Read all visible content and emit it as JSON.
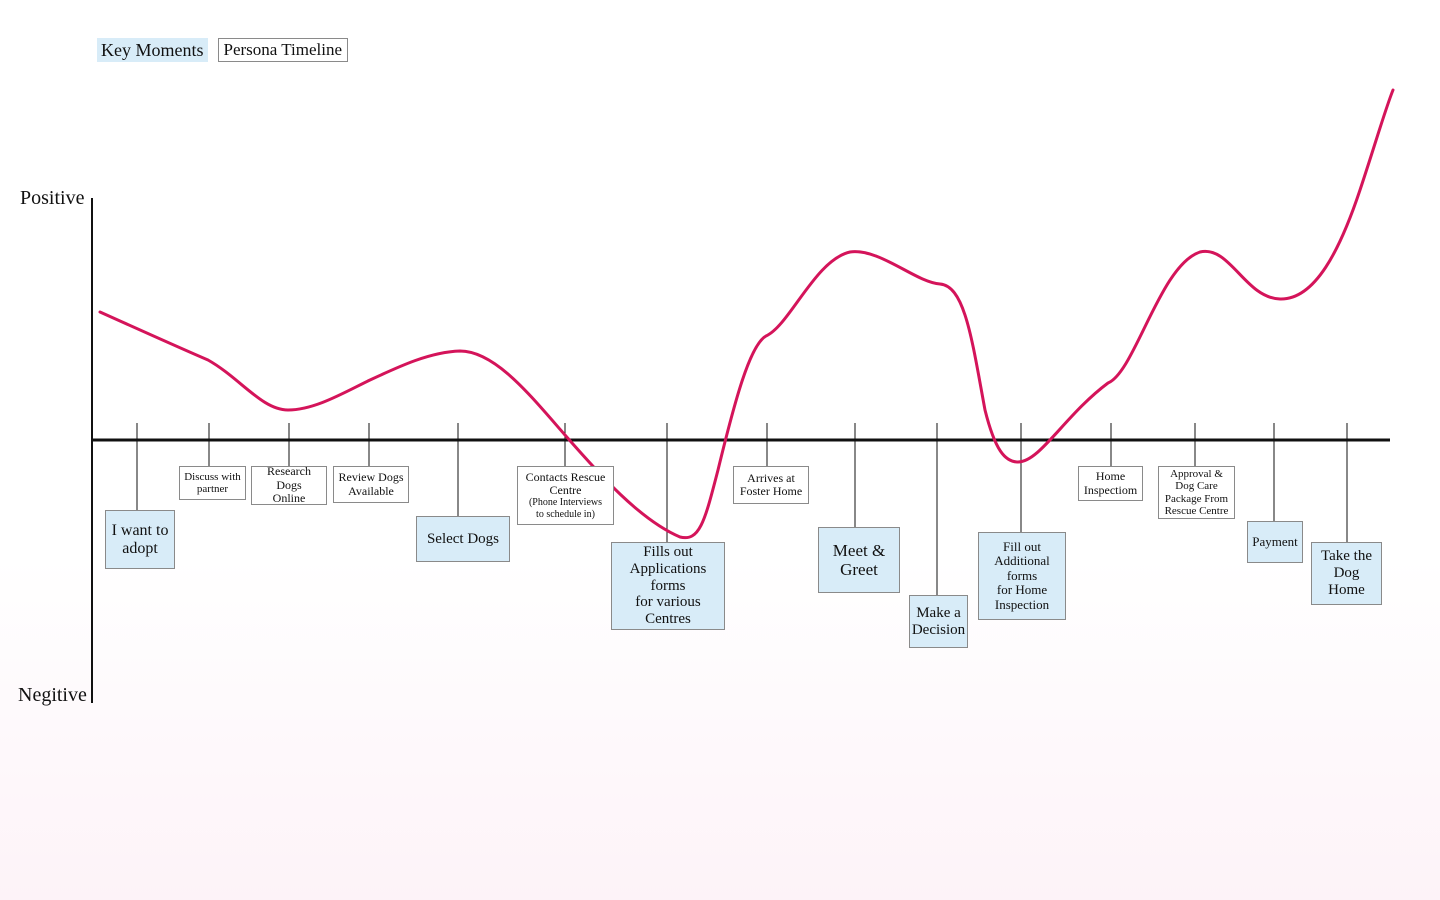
{
  "legend": {
    "key_label": "Key Moments",
    "timeline_label": "Persona Timeline"
  },
  "axis": {
    "positive_label": "Positive",
    "negative_label": "Negitive"
  },
  "colors": {
    "curve": "#d4145a",
    "key_fill": "#d8ecf8",
    "box_border": "#8a8a8a"
  },
  "moments": [
    {
      "id": "want-to-adopt",
      "label": "I want to\nadopt",
      "key": true
    },
    {
      "id": "discuss-partner",
      "label": "Discuss with\npartner",
      "key": false
    },
    {
      "id": "research-dogs",
      "label": "Research Dogs\nOnline",
      "key": false
    },
    {
      "id": "review-dogs",
      "label": "Review Dogs\nAvailable",
      "key": false
    },
    {
      "id": "select-dogs",
      "label": "Select Dogs",
      "key": true
    },
    {
      "id": "contacts-rescue",
      "label": "Contacts Rescue\nCentre",
      "sub": "(Phone Interviews\nto schedule in)",
      "key": false
    },
    {
      "id": "fills-out-forms",
      "label": "Fills out\nApplications forms\nfor various Centres",
      "key": true
    },
    {
      "id": "arrives-foster",
      "label": "Arrives at\nFoster Home",
      "key": false
    },
    {
      "id": "meet-greet",
      "label": "Meet &\nGreet",
      "key": true
    },
    {
      "id": "make-decision",
      "label": "Make a\nDecision",
      "key": true
    },
    {
      "id": "additional-forms",
      "label": "Fill out\nAdditional forms\nfor Home\nInspection",
      "key": true
    },
    {
      "id": "home-inspection",
      "label": "Home\nInspectiom",
      "key": false
    },
    {
      "id": "approval-package",
      "label": "Approval &\nDog Care\nPackage From\nRescue Centre",
      "key": false
    },
    {
      "id": "payment",
      "label": "Payment",
      "key": true
    },
    {
      "id": "take-dog-home",
      "label": "Take the\nDog Home",
      "key": true
    }
  ]
}
